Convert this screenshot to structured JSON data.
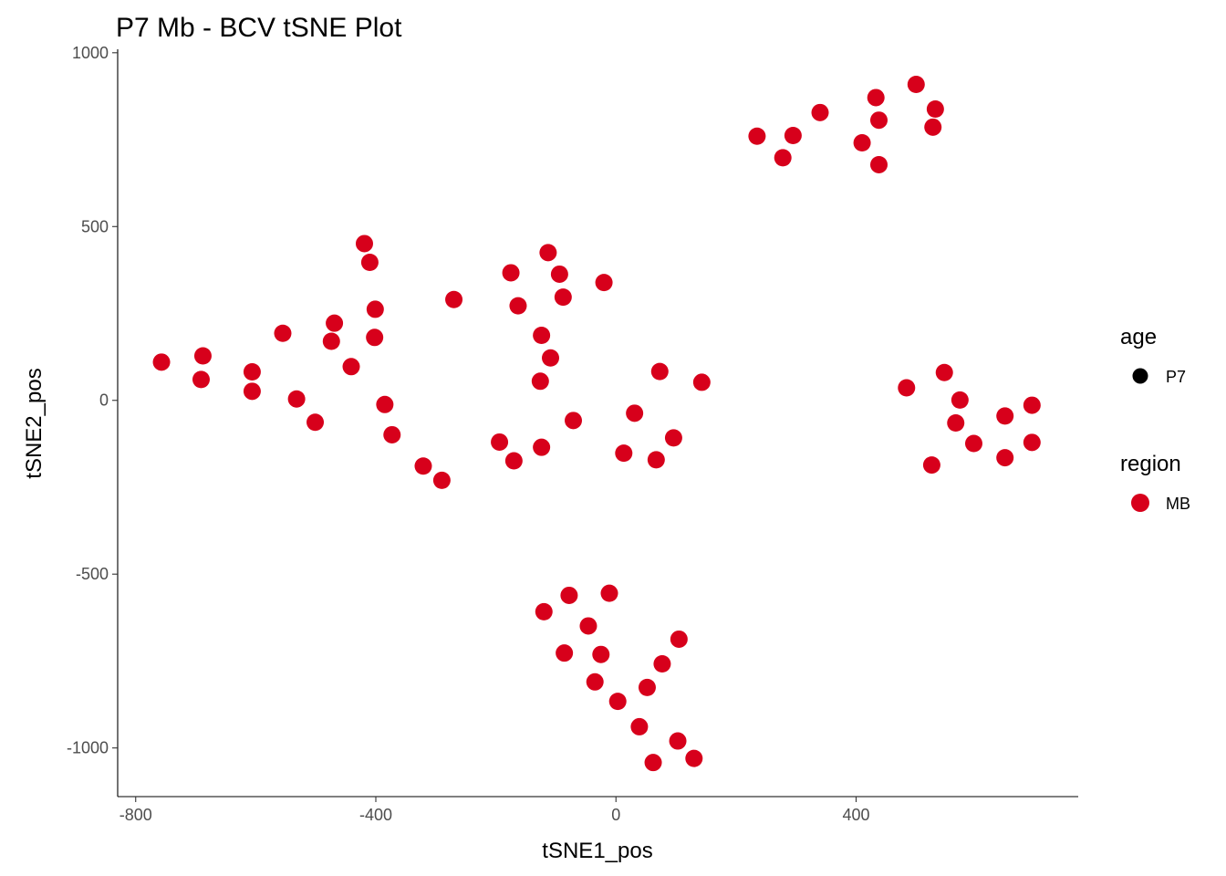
{
  "chart_data": {
    "type": "scatter",
    "title": "P7 Mb - BCV tSNE Plot",
    "xlabel": "tSNE1_pos",
    "ylabel": "tSNE2_pos",
    "xlim": [
      -830,
      770
    ],
    "ylim": [
      -1140,
      1010
    ],
    "xticks": [
      -800,
      -400,
      0,
      400
    ],
    "xtick_labels": [
      "-800",
      "-400",
      "0",
      "400"
    ],
    "yticks": [
      1000,
      500,
      0,
      -500,
      -1000
    ],
    "ytick_labels": [
      "1000",
      "500",
      "0",
      "-500",
      "-1000"
    ],
    "grid": false,
    "legend": {
      "placement": "right",
      "groups": [
        {
          "title": "age",
          "entries": [
            {
              "label": "P7",
              "color": "#000000"
            }
          ]
        },
        {
          "title": "region",
          "entries": [
            {
              "label": "MB",
              "color": "#d7001b"
            }
          ]
        }
      ]
    },
    "series": [
      {
        "name": "MB",
        "color": "#d7001b",
        "points": [
          [
            -757,
            110
          ],
          [
            -688,
            128
          ],
          [
            -691,
            60
          ],
          [
            -606,
            82
          ],
          [
            -606,
            26
          ],
          [
            -555,
            193
          ],
          [
            -532,
            4
          ],
          [
            -501,
            -63
          ],
          [
            -469,
            222
          ],
          [
            -474,
            170
          ],
          [
            -441,
            97
          ],
          [
            -419,
            451
          ],
          [
            -410,
            397
          ],
          [
            -401,
            262
          ],
          [
            -402,
            181
          ],
          [
            -385,
            -12
          ],
          [
            -373,
            -99
          ],
          [
            -321,
            -189
          ],
          [
            -290,
            -230
          ],
          [
            -270,
            290
          ],
          [
            -175,
            367
          ],
          [
            -163,
            272
          ],
          [
            -126,
            55
          ],
          [
            -124,
            187
          ],
          [
            -113,
            425
          ],
          [
            -109,
            122
          ],
          [
            -94,
            363
          ],
          [
            -88,
            297
          ],
          [
            -71,
            -58
          ],
          [
            -20,
            339
          ],
          [
            -194,
            -120
          ],
          [
            -170,
            -174
          ],
          [
            -124,
            -135
          ],
          [
            31,
            -37
          ],
          [
            13,
            -152
          ],
          [
            73,
            83
          ],
          [
            67,
            -171
          ],
          [
            96,
            -108
          ],
          [
            143,
            52
          ],
          [
            235,
            760
          ],
          [
            278,
            698
          ],
          [
            295,
            762
          ],
          [
            340,
            828
          ],
          [
            410,
            741
          ],
          [
            433,
            871
          ],
          [
            438,
            806
          ],
          [
            438,
            678
          ],
          [
            500,
            909
          ],
          [
            532,
            838
          ],
          [
            528,
            786
          ],
          [
            484,
            36
          ],
          [
            547,
            80
          ],
          [
            573,
            1
          ],
          [
            566,
            -65
          ],
          [
            596,
            -124
          ],
          [
            648,
            -165
          ],
          [
            648,
            -45
          ],
          [
            526,
            -186
          ],
          [
            693,
            -14
          ],
          [
            693,
            -121
          ],
          [
            -120,
            -608
          ],
          [
            -78,
            -561
          ],
          [
            -11,
            -555
          ],
          [
            -46,
            -649
          ],
          [
            -86,
            -727
          ],
          [
            -25,
            -731
          ],
          [
            -35,
            -810
          ],
          [
            3,
            -866
          ],
          [
            39,
            -939
          ],
          [
            52,
            -826
          ],
          [
            77,
            -758
          ],
          [
            105,
            -687
          ],
          [
            62,
            -1042
          ],
          [
            103,
            -980
          ],
          [
            130,
            -1030
          ]
        ]
      }
    ]
  }
}
